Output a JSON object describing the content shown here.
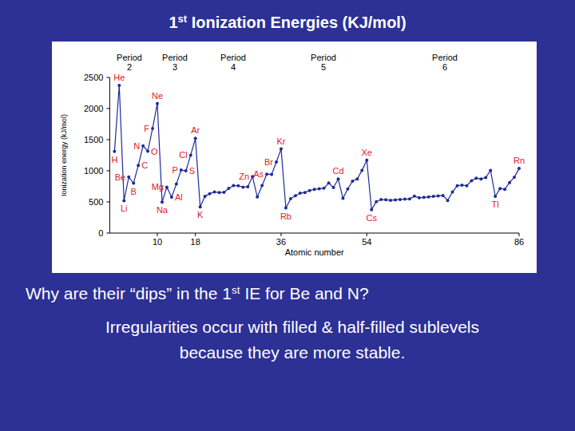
{
  "slide": {
    "title": "1st Ionization Energies (KJ/mol)",
    "question": "Why are their “dips” in the 1st IE for Be and N?",
    "answer_lines": [
      "Irregularities occur with filled & half-filled sublevels",
      "because they are more stable."
    ]
  },
  "chart_data": {
    "type": "line",
    "x_label": "Atomic number",
    "y_label": "Ionization energy (kJ/mol)",
    "period_labels": [
      "Period 2",
      "Period 3",
      "Period 4",
      "Period 5",
      "Period 6"
    ],
    "x": [
      1,
      2,
      3,
      4,
      5,
      6,
      7,
      8,
      9,
      10,
      11,
      12,
      13,
      14,
      15,
      16,
      17,
      18,
      19,
      20,
      21,
      22,
      23,
      24,
      25,
      26,
      27,
      28,
      29,
      30,
      31,
      32,
      33,
      34,
      35,
      36,
      37,
      38,
      39,
      40,
      41,
      42,
      43,
      44,
      45,
      46,
      47,
      48,
      49,
      50,
      51,
      52,
      53,
      54,
      55,
      56,
      57,
      58,
      59,
      60,
      61,
      62,
      63,
      64,
      65,
      66,
      67,
      68,
      69,
      70,
      71,
      72,
      73,
      74,
      75,
      76,
      77,
      78,
      79,
      80,
      81,
      82,
      83,
      84,
      85,
      86
    ],
    "values": [
      1312,
      2372,
      520,
      900,
      801,
      1086,
      1402,
      1314,
      1681,
      2081,
      496,
      738,
      578,
      787,
      1012,
      1000,
      1251,
      1521,
      419,
      590,
      633,
      659,
      651,
      653,
      717,
      762,
      760,
      737,
      745,
      906,
      579,
      762,
      947,
      941,
      1140,
      1351,
      403,
      550,
      600,
      640,
      652,
      684,
      702,
      710,
      720,
      804,
      731,
      868,
      558,
      709,
      834,
      869,
      1008,
      1170,
      376,
      503,
      538,
      534,
      527,
      533,
      540,
      545,
      547,
      593,
      566,
      573,
      581,
      589,
      597,
      603,
      524,
      659,
      761,
      770,
      760,
      840,
      880,
      870,
      890,
      1007,
      589,
      716,
      703,
      812,
      899,
      1037
    ],
    "point_labels": [
      "H",
      "He",
      "Li",
      "Be",
      "B",
      "C",
      "N",
      "O",
      "F",
      "Ne",
      "Na",
      "Mg",
      "Al",
      null,
      "P",
      "S",
      "Cl",
      "Ar",
      "K",
      null,
      null,
      null,
      null,
      null,
      null,
      null,
      null,
      null,
      null,
      "Zn",
      null,
      null,
      "As",
      null,
      "Br",
      "Kr",
      "Rb",
      null,
      null,
      null,
      null,
      null,
      null,
      null,
      null,
      null,
      null,
      "Cd",
      null,
      null,
      null,
      null,
      null,
      "Xe",
      "Cs",
      null,
      null,
      null,
      null,
      null,
      null,
      null,
      null,
      null,
      null,
      null,
      null,
      null,
      null,
      null,
      null,
      null,
      null,
      null,
      null,
      null,
      null,
      null,
      null,
      null,
      "Tl",
      null,
      null,
      null,
      null,
      "Rn"
    ],
    "color": "#1f2a9a",
    "marker": "circle",
    "xlim": [
      0,
      86
    ],
    "xticks": [
      10,
      18,
      36,
      54,
      86
    ],
    "ylim": [
      0,
      2500
    ],
    "yticks": [
      0,
      500,
      1000,
      1500,
      2000,
      2500
    ]
  }
}
